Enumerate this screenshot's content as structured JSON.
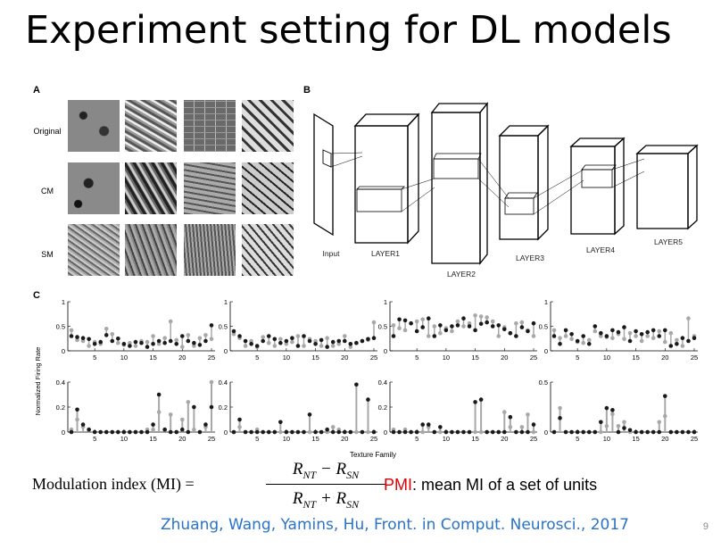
{
  "slide": {
    "title": "Experiment setting for DL models",
    "page_number": "9",
    "citation": "Zhuang, Wang, Yamins, Hu, Front. in Comput. Neurosci., 2017"
  },
  "panel_a": {
    "label": "A",
    "rows": [
      "Original",
      "CM",
      "SM"
    ]
  },
  "panel_b": {
    "label": "B",
    "layers": [
      "Input",
      "LAYER1",
      "LAYER2",
      "LAYER3",
      "LAYER4",
      "LAYER5"
    ]
  },
  "panel_c": {
    "label": "C",
    "ylabel": "Normalized Firing Rate",
    "xlabel": "Texture Family",
    "top_row_yticks": [
      "0",
      "0.5",
      "1"
    ],
    "bottom_row_yticks": [
      [
        "0",
        "0.2",
        "0.4"
      ],
      [
        "0",
        "0.2",
        "0.4"
      ],
      [
        "0",
        "0.2",
        "0.4"
      ],
      [
        "0",
        "0.5"
      ]
    ],
    "xticks": [
      "5",
      "10",
      "15",
      "20",
      "25"
    ]
  },
  "chart_data": [
    {
      "type": "scatter",
      "row": "top",
      "ylim": [
        0,
        1
      ],
      "xlim": [
        0,
        25
      ],
      "black": [
        0.3,
        0.28,
        0.26,
        0.24,
        0.14,
        0.18,
        0.32,
        0.2,
        0.25,
        0.14,
        0.1,
        0.18,
        0.16,
        0.08,
        0.14,
        0.2,
        0.16,
        0.2,
        0.14,
        0.3,
        0.2,
        0.16,
        0.12,
        0.2,
        0.52
      ],
      "gray": [
        0.42,
        0.22,
        0.2,
        0.1,
        0.18,
        0.14,
        0.45,
        0.34,
        0.16,
        0.12,
        0.16,
        0.1,
        0.2,
        0.18,
        0.3,
        0.14,
        0.26,
        0.6,
        0.22,
        0.08,
        0.32,
        0.1,
        0.26,
        0.32,
        0.24
      ]
    },
    {
      "type": "scatter",
      "row": "top",
      "ylim": [
        0,
        1
      ],
      "xlim": [
        0,
        25
      ],
      "black": [
        0.4,
        0.3,
        0.2,
        0.14,
        0.1,
        0.2,
        0.3,
        0.24,
        0.16,
        0.2,
        0.26,
        0.1,
        0.3,
        0.2,
        0.14,
        0.22,
        0.08,
        0.18,
        0.2,
        0.2,
        0.14,
        0.16,
        0.2,
        0.24,
        0.26
      ],
      "gray": [
        0.34,
        0.26,
        0.1,
        0.2,
        0.08,
        0.28,
        0.16,
        0.1,
        0.24,
        0.14,
        0.18,
        0.3,
        0.1,
        0.24,
        0.2,
        0.1,
        0.26,
        0.1,
        0.14,
        0.3,
        0.08,
        0.16,
        0.2,
        0.22,
        0.58
      ]
    },
    {
      "type": "scatter",
      "row": "top",
      "ylim": [
        0,
        1
      ],
      "xlim": [
        0,
        25
      ],
      "black": [
        0.3,
        0.64,
        0.62,
        0.56,
        0.4,
        0.48,
        0.66,
        0.3,
        0.52,
        0.42,
        0.5,
        0.52,
        0.66,
        0.5,
        0.42,
        0.55,
        0.58,
        0.5,
        0.52,
        0.44,
        0.36,
        0.3,
        0.48,
        0.4,
        0.56
      ],
      "gray": [
        0.52,
        0.46,
        0.42,
        0.56,
        0.6,
        0.64,
        0.3,
        0.5,
        0.36,
        0.46,
        0.4,
        0.6,
        0.5,
        0.56,
        0.72,
        0.7,
        0.68,
        0.6,
        0.3,
        0.48,
        0.36,
        0.56,
        0.58,
        0.42,
        0.3
      ]
    },
    {
      "type": "scatter",
      "row": "top",
      "ylim": [
        0,
        1
      ],
      "xlim": [
        0,
        25
      ],
      "black": [
        0.3,
        0.14,
        0.42,
        0.34,
        0.2,
        0.3,
        0.14,
        0.5,
        0.36,
        0.3,
        0.42,
        0.38,
        0.48,
        0.2,
        0.4,
        0.34,
        0.38,
        0.42,
        0.3,
        0.42,
        0.1,
        0.14,
        0.26,
        0.2,
        0.26
      ],
      "gray": [
        0.42,
        0.26,
        0.3,
        0.24,
        0.18,
        0.16,
        0.22,
        0.4,
        0.3,
        0.28,
        0.26,
        0.34,
        0.24,
        0.36,
        0.3,
        0.2,
        0.3,
        0.26,
        0.4,
        0.18,
        0.36,
        0.22,
        0.1,
        0.66,
        0.3
      ]
    },
    {
      "type": "lollipop",
      "row": "bottom",
      "ylim": [
        0,
        0.4
      ],
      "xlim": [
        0,
        25
      ],
      "black": [
        0.0,
        0.18,
        0.06,
        0.02,
        0.0,
        0.0,
        0.0,
        0.0,
        0.0,
        0.0,
        0.0,
        0.0,
        0.0,
        0.0,
        0.06,
        0.3,
        0.02,
        0.0,
        0.0,
        0.02,
        0.0,
        0.2,
        0.0,
        0.06,
        0.2
      ],
      "gray": [
        0.02,
        0.1,
        0.04,
        0.02,
        0.0,
        0.0,
        0.0,
        0.0,
        0.0,
        0.0,
        0.0,
        0.0,
        0.0,
        0.02,
        0.02,
        0.16,
        0.02,
        0.14,
        0.0,
        0.1,
        0.24,
        0.02,
        0.0,
        0.04,
        0.4
      ]
    },
    {
      "type": "lollipop",
      "row": "bottom",
      "ylim": [
        0,
        0.4
      ],
      "xlim": [
        0,
        25
      ],
      "black": [
        0.0,
        0.1,
        0.0,
        0.0,
        0.0,
        0.0,
        0.0,
        0.0,
        0.08,
        0.0,
        0.0,
        0.0,
        0.0,
        0.14,
        0.0,
        0.0,
        0.02,
        0.0,
        0.0,
        0.0,
        0.0,
        0.38,
        0.0,
        0.26,
        0.0
      ],
      "gray": [
        0.0,
        0.04,
        0.0,
        0.0,
        0.02,
        0.0,
        0.0,
        0.0,
        0.0,
        0.0,
        0.0,
        0.0,
        0.0,
        0.0,
        0.0,
        0.0,
        0.0,
        0.04,
        0.02,
        0.0,
        0.0,
        0.0,
        0.0,
        0.0,
        0.0
      ]
    },
    {
      "type": "lollipop",
      "row": "bottom",
      "ylim": [
        0,
        0.4
      ],
      "xlim": [
        0,
        25
      ],
      "black": [
        0.0,
        0.0,
        0.0,
        0.0,
        0.0,
        0.06,
        0.06,
        0.0,
        0.04,
        0.0,
        0.0,
        0.0,
        0.0,
        0.0,
        0.24,
        0.26,
        0.0,
        0.0,
        0.0,
        0.0,
        0.12,
        0.0,
        0.0,
        0.0,
        0.06
      ],
      "gray": [
        0.02,
        0.0,
        0.02,
        0.0,
        0.0,
        0.0,
        0.04,
        0.0,
        0.0,
        0.0,
        0.0,
        0.0,
        0.0,
        0.0,
        0.0,
        0.0,
        0.0,
        0.0,
        0.0,
        0.16,
        0.04,
        0.0,
        0.04,
        0.14,
        0.0
      ]
    },
    {
      "type": "lollipop",
      "row": "bottom",
      "ylim": [
        0,
        0.5
      ],
      "xlim": [
        0,
        25
      ],
      "black": [
        0.0,
        0.14,
        0.0,
        0.0,
        0.0,
        0.0,
        0.0,
        0.0,
        0.1,
        0.24,
        0.22,
        0.0,
        0.04,
        0.02,
        0.0,
        0.0,
        0.0,
        0.0,
        0.0,
        0.36,
        0.0,
        0.0,
        0.0,
        0.0,
        0.0
      ],
      "gray": [
        0.0,
        0.24,
        0.0,
        0.0,
        0.0,
        0.0,
        0.0,
        0.0,
        0.0,
        0.06,
        0.18,
        0.06,
        0.1,
        0.0,
        0.0,
        0.0,
        0.0,
        0.0,
        0.1,
        0.16,
        0.0,
        0.0,
        0.0,
        0.0,
        0.0
      ]
    }
  ],
  "formula": {
    "lhs": "Modulation index (MI) =",
    "numerator": "RNT − RSN",
    "denominator": "RNT + RSN"
  },
  "pmi_note": {
    "prefix": "PMI",
    "rest": ": mean MI of a set of units",
    "color": "#e00000"
  },
  "colors": {
    "citation": "#2a73c8",
    "dot_black": "#1a1a1a",
    "dot_gray": "#a8a8a8"
  }
}
